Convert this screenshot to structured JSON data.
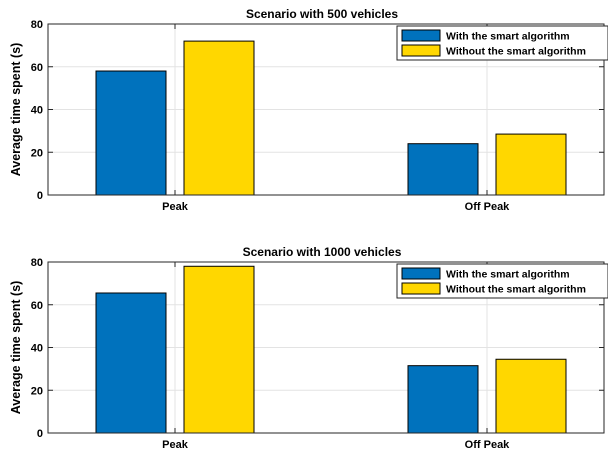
{
  "colors": {
    "with": "#0072BD",
    "without": "#FFD700",
    "grid": "#e3e3e3",
    "axis": "#262626"
  },
  "chart_data": [
    {
      "type": "bar",
      "title": "Scenario with 500 vehicles",
      "ylabel": "Average time spent (s)",
      "xlabel": "",
      "categories": [
        "Peak",
        "Off Peak"
      ],
      "series": [
        {
          "name": "With the smart algorithm",
          "values": [
            58,
            24
          ]
        },
        {
          "name": "Without the smart algorithm",
          "values": [
            72,
            28.5
          ]
        }
      ],
      "ylim": [
        0,
        80
      ],
      "yticks": [
        0,
        20,
        40,
        60,
        80
      ],
      "grid": true,
      "legend": "top-right"
    },
    {
      "type": "bar",
      "title": "Scenario with 1000 vehicles",
      "ylabel": "Average time spent (s)",
      "xlabel": "",
      "categories": [
        "Peak",
        "Off Peak"
      ],
      "series": [
        {
          "name": "With the smart algorithm",
          "values": [
            65.5,
            31.5
          ]
        },
        {
          "name": "Without the smart algorithm",
          "values": [
            78,
            34.5
          ]
        }
      ],
      "ylim": [
        0,
        80
      ],
      "yticks": [
        0,
        20,
        40,
        60,
        80
      ],
      "grid": true,
      "legend": "top-right"
    }
  ]
}
